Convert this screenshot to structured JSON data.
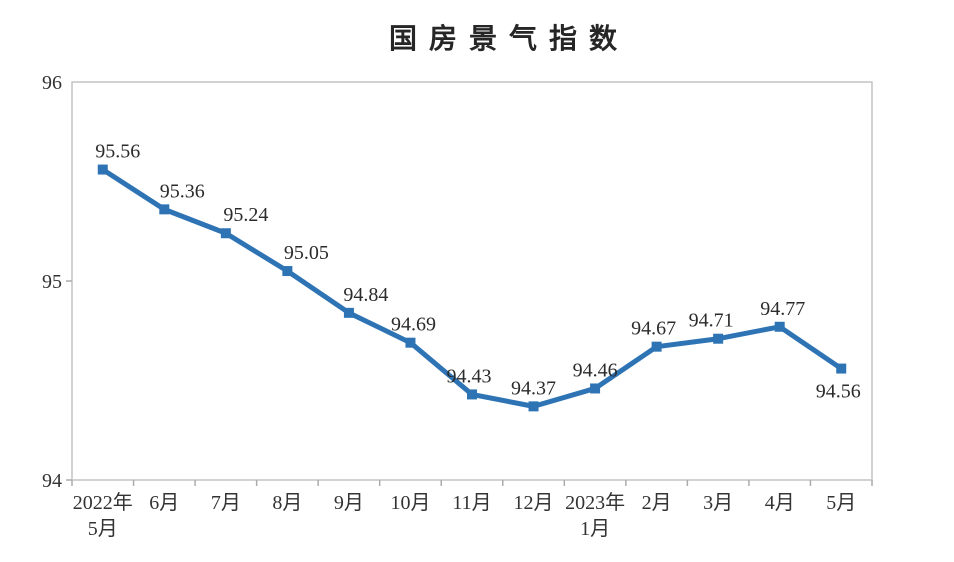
{
  "chart_data": {
    "type": "line",
    "title": "国房景气指数",
    "categories": [
      "2022年\n5月",
      "6月",
      "7月",
      "8月",
      "9月",
      "10月",
      "11月",
      "12月",
      "2023年\n1月",
      "2月",
      "3月",
      "4月",
      "5月"
    ],
    "values": [
      95.56,
      95.36,
      95.24,
      95.05,
      94.84,
      94.69,
      94.43,
      94.37,
      94.46,
      94.67,
      94.71,
      94.77,
      94.56
    ],
    "point_labels": [
      "95.56",
      "95.36",
      "95.24",
      "95.05",
      "94.84",
      "94.69",
      "94.43",
      "94.37",
      "94.46",
      "94.67",
      "94.71",
      "94.77",
      "94.56"
    ],
    "ylim": [
      94,
      96
    ],
    "yticks": [
      "94",
      "95",
      "96"
    ],
    "xlabel": "",
    "ylabel": "",
    "grid": false,
    "legend": "none",
    "marker": "square",
    "last_label_position": "below",
    "colors": {
      "line": "#2E74B5",
      "marker": "#2E74B5",
      "axis": "#C3C3C3",
      "tick": "#ABABAB",
      "label_text": "#2B2B2B",
      "axis_text": "#333333",
      "title_text": "#262626"
    }
  }
}
